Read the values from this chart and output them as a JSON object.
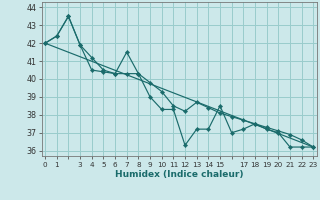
{
  "xlabel": "Humidex (Indice chaleur)",
  "ylabel": "",
  "bg_color": "#cce8ea",
  "grid_color": "#99cccc",
  "line_color": "#1a6b6b",
  "ylim": [
    35.7,
    44.3
  ],
  "xlim": [
    -0.3,
    23.3
  ],
  "yticks": [
    36,
    37,
    38,
    39,
    40,
    41,
    42,
    43,
    44
  ],
  "xtick_positions": [
    0,
    1,
    3,
    4,
    5,
    6,
    7,
    8,
    9,
    10,
    11,
    12,
    13,
    14,
    15,
    17,
    18,
    19,
    20,
    21,
    22,
    23
  ],
  "xtick_labels": [
    "0",
    "1",
    "3",
    "4",
    "5",
    "6",
    "7",
    "8",
    "9",
    "10",
    "11",
    "12",
    "13",
    "14",
    "15",
    "17",
    "18",
    "19",
    "20",
    "21",
    "22",
    "23"
  ],
  "series1_x": [
    0,
    1,
    2,
    3,
    4,
    5,
    6,
    7,
    8,
    9,
    10,
    11,
    12,
    13,
    14,
    15,
    16,
    17,
    18,
    19,
    20,
    21,
    22,
    23
  ],
  "series1_y": [
    42.0,
    42.4,
    43.5,
    41.9,
    41.2,
    40.5,
    40.3,
    41.5,
    40.3,
    39.0,
    38.3,
    38.3,
    36.3,
    37.2,
    37.2,
    38.5,
    37.0,
    37.2,
    37.5,
    37.2,
    37.0,
    36.2,
    36.2,
    36.2
  ],
  "series2_x": [
    0,
    1,
    2,
    3,
    4,
    5,
    6,
    7,
    8,
    9,
    10,
    11,
    12,
    13,
    14,
    15,
    16,
    17,
    18,
    19,
    20,
    21,
    22,
    23
  ],
  "series2_y": [
    42.0,
    42.4,
    43.5,
    41.9,
    40.5,
    40.4,
    40.3,
    40.3,
    40.3,
    39.8,
    39.3,
    38.5,
    38.2,
    38.7,
    38.4,
    38.1,
    37.9,
    37.7,
    37.5,
    37.3,
    37.1,
    36.9,
    36.6,
    36.2
  ],
  "series3_x": [
    0,
    23
  ],
  "series3_y": [
    42.0,
    36.2
  ],
  "markersize": 2.2,
  "linewidth": 0.85
}
